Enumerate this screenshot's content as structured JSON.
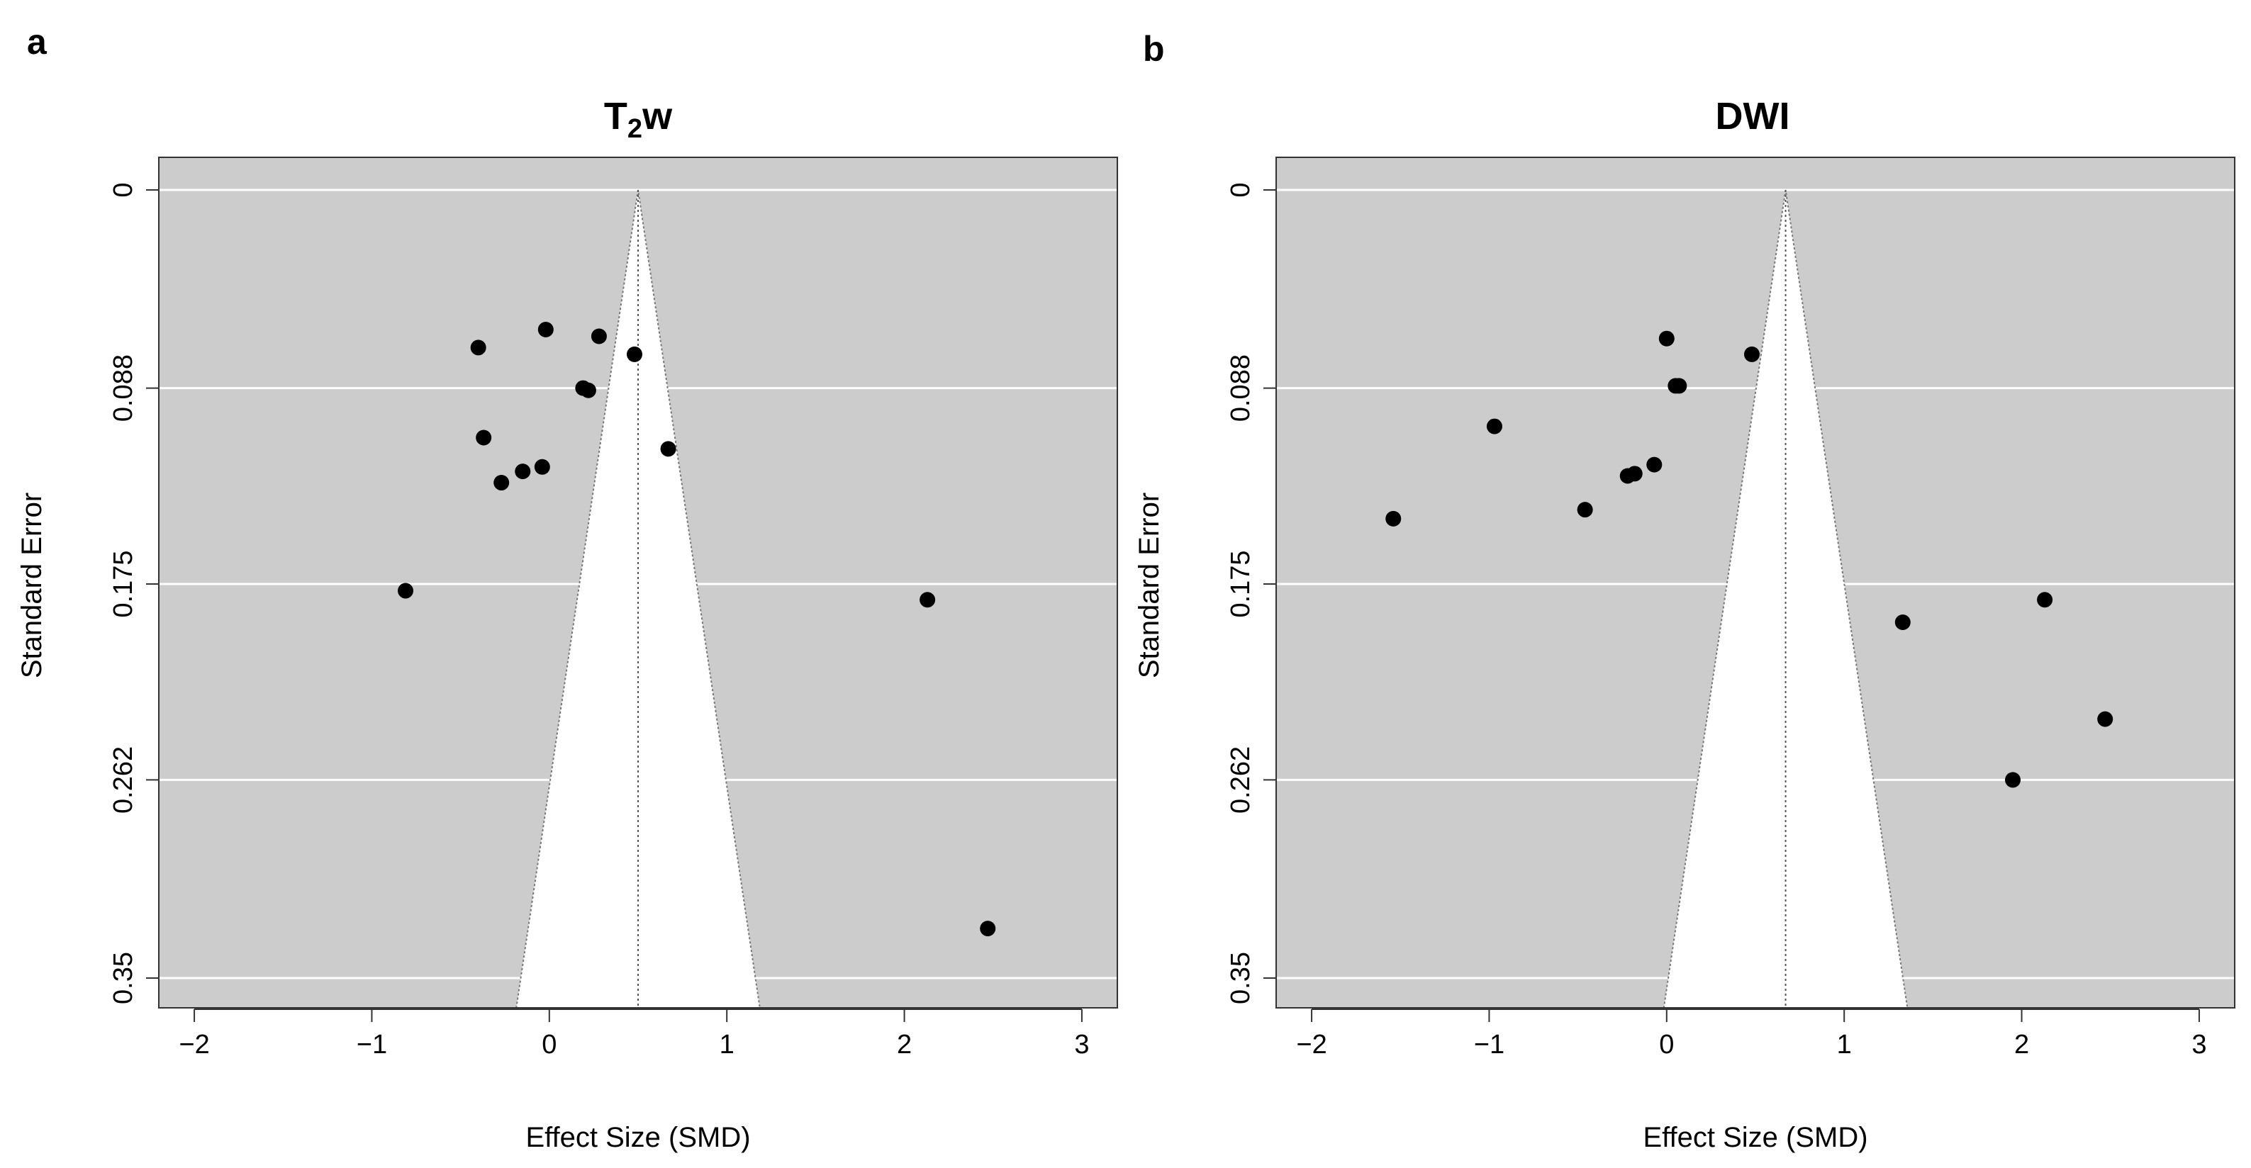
{
  "chart_data": [
    {
      "panel_label": "a",
      "type": "scatter",
      "subtype": "funnel",
      "title": "T",
      "title_subscript": "2",
      "title_suffix": "w",
      "xlabel": "Effect Size (SMD)",
      "ylabel": "Standard Error",
      "xlim": [
        -2.2,
        3.2
      ],
      "ylim": [
        0.35,
        0
      ],
      "xticks": [
        -2,
        -1,
        0,
        1,
        2,
        3
      ],
      "xtick_labels": [
        "−2",
        "−1",
        "0",
        "1",
        "2",
        "3"
      ],
      "yticks": [
        0,
        0.088,
        0.175,
        0.262,
        0.35
      ],
      "ytick_labels": [
        "0",
        "0.088",
        "0.175",
        "0.262",
        "0.35"
      ],
      "summary_effect": 0.5,
      "points": [
        {
          "x": -0.02,
          "y": 0.062
        },
        {
          "x": -0.4,
          "y": 0.07
        },
        {
          "x": 0.28,
          "y": 0.065
        },
        {
          "x": 0.48,
          "y": 0.073
        },
        {
          "x": 0.19,
          "y": 0.088
        },
        {
          "x": 0.22,
          "y": 0.089
        },
        {
          "x": -0.37,
          "y": 0.11
        },
        {
          "x": 0.67,
          "y": 0.115
        },
        {
          "x": -0.04,
          "y": 0.123
        },
        {
          "x": -0.15,
          "y": 0.125
        },
        {
          "x": -0.27,
          "y": 0.13
        },
        {
          "x": -0.81,
          "y": 0.178
        },
        {
          "x": 2.13,
          "y": 0.182
        },
        {
          "x": 2.47,
          "y": 0.328
        }
      ]
    },
    {
      "panel_label": "b",
      "type": "scatter",
      "subtype": "funnel",
      "title": "DWI",
      "title_subscript": "",
      "title_suffix": "",
      "xlabel": "Effect Size (SMD)",
      "ylabel": "Standard Error",
      "xlim": [
        -2.2,
        3.2
      ],
      "ylim": [
        0.35,
        0
      ],
      "xticks": [
        -2,
        -1,
        0,
        1,
        2,
        3
      ],
      "xtick_labels": [
        "−2",
        "−1",
        "0",
        "1",
        "2",
        "3"
      ],
      "yticks": [
        0,
        0.088,
        0.175,
        0.262,
        0.35
      ],
      "ytick_labels": [
        "0",
        "0.088",
        "0.175",
        "0.262",
        "0.35"
      ],
      "summary_effect": 0.67,
      "points": [
        {
          "x": 0.0,
          "y": 0.066
        },
        {
          "x": 0.48,
          "y": 0.073
        },
        {
          "x": 0.05,
          "y": 0.087
        },
        {
          "x": 0.07,
          "y": 0.087
        },
        {
          "x": -0.97,
          "y": 0.105
        },
        {
          "x": -0.07,
          "y": 0.122
        },
        {
          "x": -0.18,
          "y": 0.126
        },
        {
          "x": -0.22,
          "y": 0.127
        },
        {
          "x": -0.46,
          "y": 0.142
        },
        {
          "x": -1.54,
          "y": 0.146
        },
        {
          "x": 1.33,
          "y": 0.192
        },
        {
          "x": 2.13,
          "y": 0.182
        },
        {
          "x": 2.47,
          "y": 0.235
        },
        {
          "x": 1.95,
          "y": 0.262
        }
      ]
    }
  ]
}
